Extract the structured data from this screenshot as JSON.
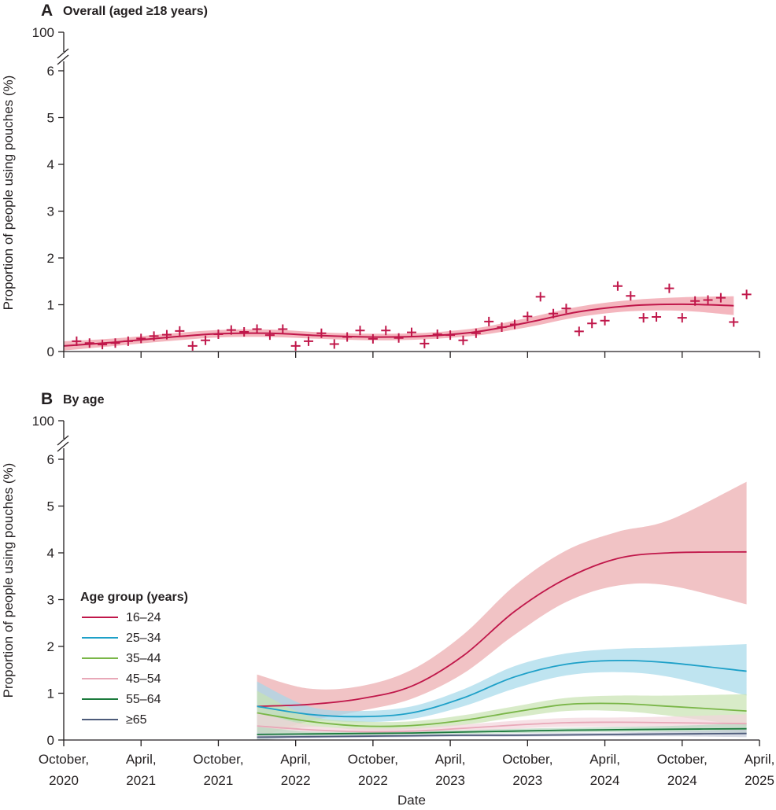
{
  "chart_data": [
    {
      "type": "line",
      "panel": "A",
      "title": "Overall (aged ≥18 years)",
      "xlabel": "",
      "ylabel": "Proportion of people using pouches (%)",
      "ylim": [
        0,
        6.5
      ],
      "axis_break_label": "100",
      "yticks": [
        "0",
        "1",
        "2",
        "3",
        "4",
        "5",
        "6"
      ],
      "xticks": [
        {
          "line1": "October,",
          "line2": "2020"
        },
        {
          "line1": "April,",
          "line2": "2021"
        },
        {
          "line1": "October,",
          "line2": "2021"
        },
        {
          "line1": "April,",
          "line2": "2022"
        },
        {
          "line1": "October,",
          "line2": "2022"
        },
        {
          "line1": "April,",
          "line2": "2023"
        },
        {
          "line1": "October,",
          "line2": "2023"
        },
        {
          "line1": "April,",
          "line2": "2024"
        },
        {
          "line1": "October,",
          "line2": "2024"
        },
        {
          "line1": "April,",
          "line2": "2025"
        }
      ],
      "color": "#c0174a",
      "band_color": "#f2a9b3",
      "observed_months": [
        1,
        2,
        3,
        4,
        5,
        6,
        7,
        8,
        9,
        10,
        11,
        12,
        13,
        14,
        15,
        16,
        17,
        18,
        19,
        20,
        21,
        22,
        23,
        24,
        25,
        26,
        27,
        28,
        29,
        30,
        31,
        32,
        33,
        34,
        35,
        36,
        37,
        38,
        39,
        40,
        41,
        42,
        43,
        44,
        45,
        46,
        47,
        48,
        49,
        50,
        51,
        52,
        53
      ],
      "observed": [
        0.22,
        0.18,
        0.15,
        0.18,
        0.22,
        0.28,
        0.33,
        0.36,
        0.44,
        0.12,
        0.24,
        0.37,
        0.46,
        0.42,
        0.48,
        0.35,
        0.48,
        0.12,
        0.22,
        0.39,
        0.16,
        0.31,
        0.45,
        0.27,
        0.45,
        0.29,
        0.41,
        0.17,
        0.37,
        0.35,
        0.24,
        0.39,
        0.64,
        0.52,
        0.58,
        0.75,
        1.17,
        0.81,
        0.92,
        0.43,
        0.6,
        0.66,
        1.4,
        1.19,
        0.72,
        0.74,
        1.35,
        0.72,
        1.08,
        1.1,
        1.15,
        0.63,
        1.22
      ],
      "fit_months": [
        0,
        4,
        8,
        12,
        16,
        20,
        24,
        28,
        32,
        36,
        40,
        44,
        48,
        52
      ],
      "fit": [
        0.12,
        0.2,
        0.3,
        0.38,
        0.39,
        0.34,
        0.31,
        0.33,
        0.42,
        0.62,
        0.85,
        0.98,
        1.01,
        0.98
      ],
      "fit_lower": [
        0.02,
        0.12,
        0.22,
        0.3,
        0.31,
        0.27,
        0.24,
        0.26,
        0.34,
        0.52,
        0.74,
        0.86,
        0.87,
        0.78
      ],
      "fit_upper": [
        0.22,
        0.28,
        0.38,
        0.46,
        0.47,
        0.41,
        0.38,
        0.4,
        0.5,
        0.72,
        0.96,
        1.1,
        1.16,
        1.18
      ]
    },
    {
      "type": "line",
      "panel": "B",
      "title": "By age",
      "xlabel": "Date",
      "ylabel": "Proportion of people using pouches (%)",
      "ylim": [
        0,
        6.5
      ],
      "axis_break_label": "100",
      "yticks": [
        "0",
        "1",
        "2",
        "3",
        "4",
        "5",
        "6"
      ],
      "legend_title": "Age group (years)",
      "legend_position": "left",
      "fit_months": [
        15,
        19,
        23,
        27,
        31,
        35,
        39,
        43,
        47,
        53
      ],
      "series": [
        {
          "name": "16–24",
          "color": "#c0174a",
          "band_color": "#eba9ac",
          "values": [
            0.72,
            0.76,
            0.88,
            1.15,
            1.8,
            2.75,
            3.45,
            3.88,
            4.0,
            4.02
          ],
          "lower": [
            0.05,
            0.4,
            0.62,
            0.88,
            1.42,
            2.25,
            2.95,
            3.3,
            3.3,
            2.9
          ],
          "upper": [
            1.4,
            1.1,
            1.15,
            1.5,
            2.25,
            3.3,
            4.05,
            4.45,
            4.7,
            5.52
          ]
        },
        {
          "name": "25–34",
          "color": "#1ea0c8",
          "band_color": "#a4d9ea",
          "values": [
            0.72,
            0.55,
            0.5,
            0.58,
            0.9,
            1.35,
            1.62,
            1.7,
            1.65,
            1.47
          ],
          "lower": [
            0.15,
            0.4,
            0.38,
            0.45,
            0.72,
            1.1,
            1.38,
            1.45,
            1.35,
            0.95
          ],
          "upper": [
            1.25,
            0.72,
            0.62,
            0.72,
            1.08,
            1.58,
            1.85,
            1.95,
            1.98,
            2.05
          ]
        },
        {
          "name": "35–44",
          "color": "#7ab648",
          "band_color": "#c8e2b0",
          "values": [
            0.58,
            0.4,
            0.3,
            0.31,
            0.42,
            0.6,
            0.76,
            0.78,
            0.72,
            0.62
          ],
          "lower": [
            0.1,
            0.28,
            0.22,
            0.23,
            0.32,
            0.48,
            0.62,
            0.62,
            0.52,
            0.3
          ],
          "upper": [
            1.05,
            0.52,
            0.4,
            0.4,
            0.53,
            0.72,
            0.9,
            0.95,
            0.95,
            0.98
          ]
        },
        {
          "name": "45–54",
          "color": "#e8a8b8",
          "band_color": "#f2d4dc",
          "values": [
            0.3,
            0.22,
            0.18,
            0.19,
            0.25,
            0.32,
            0.37,
            0.38,
            0.37,
            0.35
          ],
          "lower": [
            0.05,
            0.14,
            0.12,
            0.13,
            0.18,
            0.24,
            0.28,
            0.28,
            0.26,
            0.18
          ],
          "upper": [
            0.6,
            0.32,
            0.25,
            0.26,
            0.33,
            0.41,
            0.47,
            0.48,
            0.5,
            0.55
          ]
        },
        {
          "name": "55–64",
          "color": "#1b7a3c",
          "band_color": "#b7d8c0",
          "values": [
            0.12,
            0.13,
            0.14,
            0.15,
            0.17,
            0.19,
            0.21,
            0.22,
            0.23,
            0.24
          ],
          "lower": [
            0.0,
            0.08,
            0.1,
            0.11,
            0.13,
            0.15,
            0.16,
            0.17,
            0.17,
            0.12
          ],
          "upper": [
            0.28,
            0.18,
            0.18,
            0.19,
            0.21,
            0.24,
            0.26,
            0.28,
            0.3,
            0.36
          ]
        },
        {
          "name": "≥65",
          "color": "#4d5b7a",
          "band_color": "#c4cad8",
          "values": [
            0.06,
            0.07,
            0.08,
            0.09,
            0.1,
            0.1,
            0.11,
            0.12,
            0.13,
            0.14
          ],
          "lower": [
            0.0,
            0.04,
            0.05,
            0.06,
            0.07,
            0.07,
            0.08,
            0.08,
            0.08,
            0.06
          ],
          "upper": [
            0.16,
            0.1,
            0.11,
            0.12,
            0.13,
            0.14,
            0.15,
            0.16,
            0.18,
            0.22
          ]
        }
      ]
    }
  ]
}
